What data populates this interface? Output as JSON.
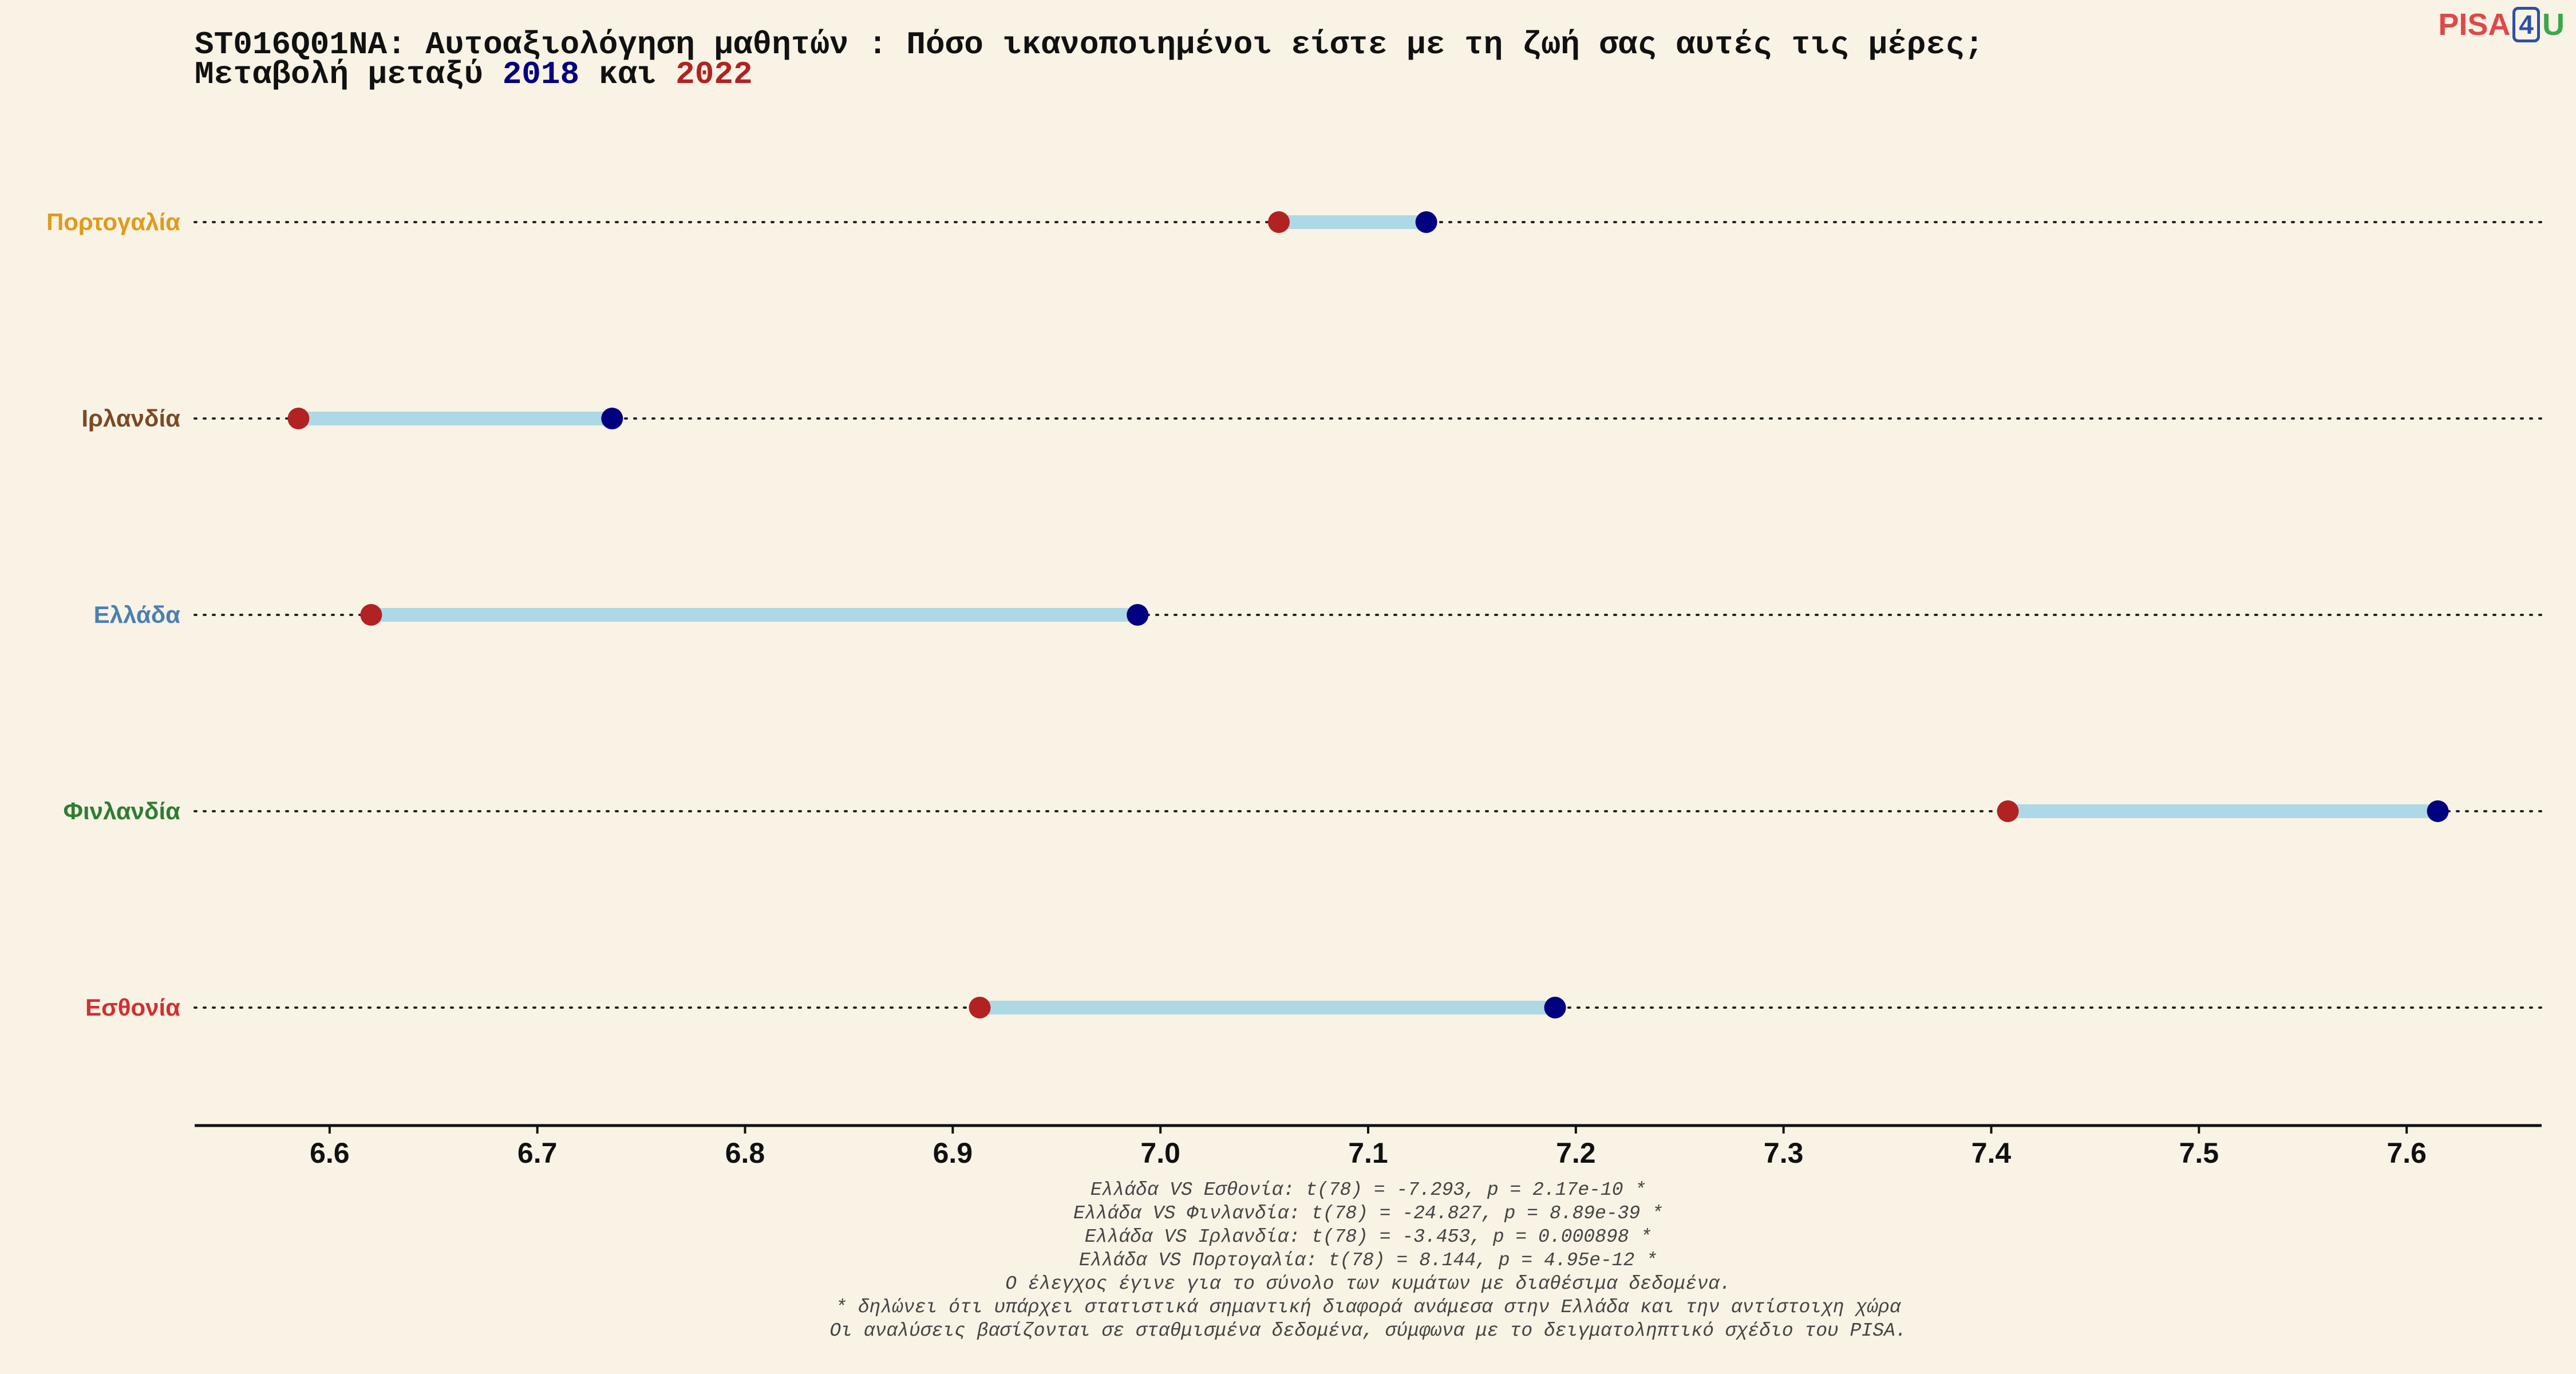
{
  "title": {
    "line1": "ST016Q01NA: Αυτοαξιολόγηση μαθητών : Πόσο ικανοποιημένοι είστε με τη ζωή σας αυτές τις μέρες;",
    "line2_prefix": "Μεταβολή μεταξύ ",
    "year_a": "2018",
    "line2_mid": " και ",
    "year_b": "2022"
  },
  "logo": {
    "part1": "PISA",
    "part2": "4",
    "part3": "U"
  },
  "chart_data": {
    "type": "dumbbell",
    "orientation": "horizontal",
    "xlim": [
      6.535,
      7.665
    ],
    "xticks": [
      6.6,
      6.7,
      6.8,
      6.9,
      7.0,
      7.1,
      7.2,
      7.3,
      7.4,
      7.5,
      7.6
    ],
    "xtick_labels": [
      "6.6",
      "6.7",
      "6.8",
      "6.9",
      "7.0",
      "7.1",
      "7.2",
      "7.3",
      "7.4",
      "7.5",
      "7.6"
    ],
    "categories": [
      {
        "name": "Πορτογαλία",
        "color": "#e09a1a",
        "v2018": 7.128,
        "v2022": 7.057
      },
      {
        "name": "Ιρλανδία",
        "color": "#7a4a26",
        "v2018": 6.736,
        "v2022": 6.585
      },
      {
        "name": "Ελλάδα",
        "color": "#4a7fb5",
        "v2018": 6.989,
        "v2022": 6.62
      },
      {
        "name": "Φινλανδία",
        "color": "#2e7d32",
        "v2018": 7.615,
        "v2022": 7.408
      },
      {
        "name": "Εσθονία",
        "color": "#d32f2f",
        "v2018": 7.19,
        "v2022": 6.913
      }
    ],
    "colors": {
      "year_2018": "#000080",
      "year_2022": "#b22222",
      "connector": "#add8e6",
      "guide": "#222222",
      "axis": "#111111"
    },
    "grid": false,
    "legend": "none"
  },
  "notes": [
    "Ελλάδα VS Εσθονία: t(78) = -7.293, p = 2.17e-10 *",
    "Ελλάδα VS Φινλανδία: t(78) = -24.827, p = 8.89e-39 *",
    "Ελλάδα VS Ιρλανδία: t(78) = -3.453, p = 0.000898 *",
    "Ελλάδα VS Πορτογαλία: t(78) = 8.144, p = 4.95e-12 *",
    "Ο έλεγχος έγινε για το σύνολο των κυμάτων με διαθέσιμα δεδομένα.",
    "* δηλώνει ότι υπάρχει στατιστικά σημαντική διαφορά ανάμεσα στην Ελλάδα και την αντίστοιχη χώρα",
    "Οι αναλύσεις βασίζονται σε σταθμισμένα δεδομένα, σύμφωνα με το δειγματοληπτικό σχέδιο του PISA."
  ]
}
